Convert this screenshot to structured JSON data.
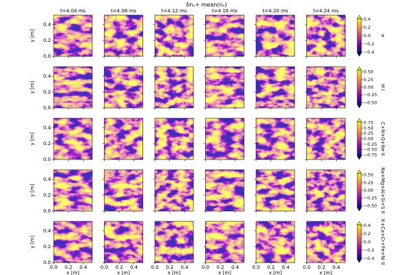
{
  "chart_data": {
    "type": "heatmap-grid",
    "title": "δnₛ+ mean(nₛ)",
    "columns": [
      "t=4.04 ms",
      "t=4.08 ms",
      "t=4.12 ms",
      "t=4.16 ms",
      "t=4.20 ms",
      "t=4.24 ms"
    ],
    "x_label": "x [m]",
    "y_label": "y [m]",
    "xlim": [
      0,
      0.52
    ],
    "xticks": [
      {
        "value": 0,
        "label": "0.0"
      },
      0.2,
      0.4
    ],
    "ylim": [
      0,
      0.52
    ],
    "yticks": [
      {
        "value": 0,
        "label": "0.0"
      },
      0.2,
      0.4
    ],
    "rows": [
      {
        "label": "e",
        "clim": [
          -0.42,
          0.42
        ],
        "cticks": [
          {
            "value": -0.4,
            "label": "−0.4"
          },
          {
            "value": -0.2,
            "label": "−0.2"
          },
          {
            "value": 0,
            "label": "0.0"
          },
          0.2,
          0.4
        ]
      },
      {
        "label": "H I",
        "clim": [
          -0.56,
          0.56
        ],
        "cticks": [
          {
            "value": -0.5,
            "label": "−0.50"
          },
          {
            "value": -0.25,
            "label": "−0.25"
          },
          {
            "value": 0,
            "label": "0.00"
          },
          0.25,
          {
            "value": 0.5,
            "label": "0.50"
          }
        ]
      },
      {
        "label": "C+N+O+Ne II",
        "clim": [
          -0.8,
          0.8
        ],
        "cticks": [
          {
            "value": -0.75,
            "label": "−0.75"
          },
          {
            "value": -0.5,
            "label": "−0.50"
          },
          {
            "value": -0.25,
            "label": "−0.25"
          },
          {
            "value": 0,
            "label": "0.00"
          },
          0.25,
          {
            "value": 0.5,
            "label": "0.50"
          },
          0.75
        ]
      },
      {
        "label": "Na+Mg+Al+Si+S II",
        "clim": [
          -0.56,
          0.56
        ],
        "cticks": [
          {
            "value": -0.5,
            "label": "−0.50"
          },
          {
            "value": -0.25,
            "label": "−0.25"
          },
          {
            "value": 0,
            "label": "0.00"
          },
          0.25,
          {
            "value": 0.5,
            "label": "0.50"
          }
        ]
      },
      {
        "label": "K+Ca+Cr+Fe+Ni II",
        "clim": [
          -0.42,
          0.42
        ],
        "cticks": [
          {
            "value": -0.4,
            "label": "−0.4"
          },
          {
            "value": -0.2,
            "label": "−0.2"
          },
          {
            "value": 0,
            "label": "0.0"
          },
          0.2,
          0.4
        ]
      }
    ]
  }
}
